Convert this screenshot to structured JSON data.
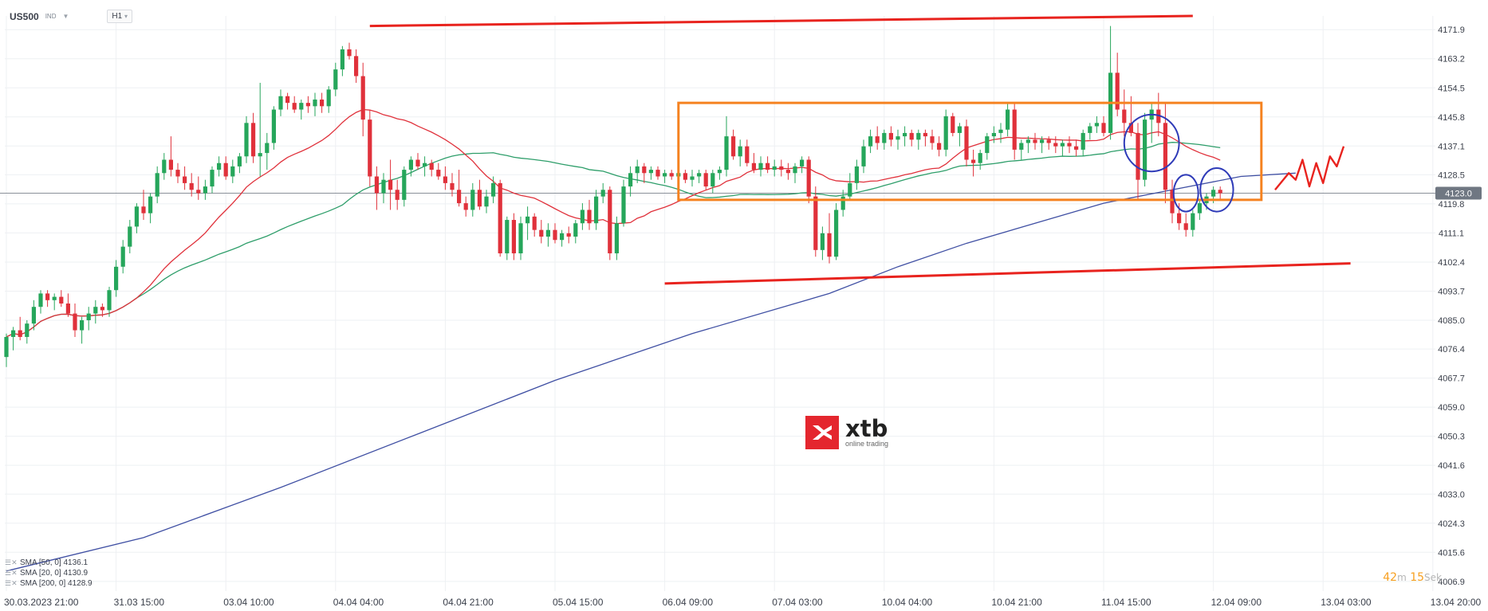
{
  "header": {
    "symbol": "US500",
    "market": "IND",
    "timeframe": "H1"
  },
  "price_axis": {
    "ticks": [
      "4171.9",
      "4163.2",
      "4154.5",
      "4145.8",
      "4137.1",
      "4128.5",
      "4119.8",
      "4111.1",
      "4102.4",
      "4093.7",
      "4085.0",
      "4076.4",
      "4067.7",
      "4059.0",
      "4050.3",
      "4041.6",
      "4033.0",
      "4024.3",
      "4015.6",
      "4006.9"
    ],
    "current_label": "4123.0"
  },
  "time_axis": {
    "labels": [
      "30.03.2023  21:00",
      "31.03  15:00",
      "03.04  10:00",
      "04.04  04:00",
      "04.04  21:00",
      "05.04  15:00",
      "06.04  09:00",
      "07.04  03:00",
      "10.04  04:00",
      "10.04  21:00",
      "11.04  15:00",
      "12.04  09:00",
      "13.04  03:00",
      "13.04  20:00"
    ]
  },
  "legend": [
    {
      "label": "SMA [50, 0] 4136.1"
    },
    {
      "label": "SMA [20, 0] 4130.9"
    },
    {
      "label": "SMA [200, 0] 4128.9"
    }
  ],
  "timer": {
    "minutes": "42",
    "min_unit": "m",
    "seconds": "15",
    "sec_unit": "Sek"
  },
  "logo": {
    "word": "xtb",
    "tagline": "online trading"
  },
  "colors": {
    "up": "#26a65b",
    "down": "#e0313b",
    "sma20": "#e0313b",
    "sma50": "#2e9e6a",
    "sma200": "#3f4fa3",
    "trend": "#e8231e",
    "box": "#f58220",
    "circle": "#2f3bb8",
    "grid": "#eef0f3"
  },
  "chart_data": {
    "type": "candlestick",
    "instrument": "US500",
    "timeframe": "H1",
    "ylim": [
      4004,
      4176
    ],
    "x_index_range": [
      0,
      190
    ],
    "candles": [
      [
        4074,
        4081,
        4071,
        4080
      ],
      [
        4080,
        4083,
        4076,
        4082
      ],
      [
        4082,
        4086,
        4079,
        4080
      ],
      [
        4080,
        4085,
        4078,
        4084
      ],
      [
        4084,
        4091,
        4082,
        4089
      ],
      [
        4089,
        4094,
        4087,
        4093
      ],
      [
        4093,
        4094,
        4089,
        4091
      ],
      [
        4091,
        4093,
        4088,
        4092
      ],
      [
        4092,
        4094,
        4089,
        4090
      ],
      [
        4090,
        4093,
        4086,
        4087
      ],
      [
        4087,
        4090,
        4080,
        4082
      ],
      [
        4082,
        4086,
        4078,
        4085
      ],
      [
        4085,
        4089,
        4082,
        4087
      ],
      [
        4087,
        4091,
        4084,
        4089
      ],
      [
        4089,
        4090,
        4086,
        4088
      ],
      [
        4088,
        4095,
        4086,
        4094
      ],
      [
        4094,
        4103,
        4092,
        4101
      ],
      [
        4101,
        4109,
        4099,
        4107
      ],
      [
        4107,
        4115,
        4105,
        4113
      ],
      [
        4113,
        4120,
        4111,
        4119
      ],
      [
        4119,
        4124,
        4115,
        4117
      ],
      [
        4117,
        4123,
        4114,
        4122
      ],
      [
        4122,
        4131,
        4120,
        4129
      ],
      [
        4129,
        4135,
        4127,
        4133
      ],
      [
        4133,
        4140,
        4128,
        4130
      ],
      [
        4130,
        4132,
        4126,
        4128
      ],
      [
        4128,
        4131,
        4124,
        4126
      ],
      [
        4126,
        4129,
        4122,
        4124
      ],
      [
        4124,
        4128,
        4121,
        4123
      ],
      [
        4123,
        4127,
        4121,
        4125
      ],
      [
        4125,
        4131,
        4123,
        4130
      ],
      [
        4130,
        4134,
        4128,
        4132
      ],
      [
        4132,
        4134,
        4127,
        4128
      ],
      [
        4128,
        4133,
        4126,
        4131
      ],
      [
        4131,
        4135,
        4129,
        4134
      ],
      [
        4134,
        4146,
        4132,
        4144
      ],
      [
        4144,
        4147,
        4132,
        4134
      ],
      [
        4134,
        4156,
        4128,
        4135
      ],
      [
        4135,
        4141,
        4130,
        4138
      ],
      [
        4138,
        4149,
        4136,
        4148
      ],
      [
        4148,
        4154,
        4146,
        4152
      ],
      [
        4152,
        4153,
        4148,
        4150
      ],
      [
        4150,
        4152,
        4147,
        4148
      ],
      [
        4148,
        4151,
        4145,
        4150
      ],
      [
        4150,
        4152,
        4147,
        4149
      ],
      [
        4149,
        4153,
        4146,
        4151
      ],
      [
        4151,
        4153,
        4147,
        4149
      ],
      [
        4149,
        4155,
        4147,
        4154
      ],
      [
        4154,
        4162,
        4152,
        4160
      ],
      [
        4160,
        4167,
        4158,
        4166
      ],
      [
        4166,
        4168,
        4163,
        4164
      ],
      [
        4164,
        4166,
        4156,
        4158
      ],
      [
        4158,
        4162,
        4140,
        4145
      ],
      [
        4145,
        4148,
        4125,
        4128
      ],
      [
        4128,
        4131,
        4118,
        4123
      ],
      [
        4123,
        4129,
        4120,
        4127
      ],
      [
        4127,
        4133,
        4118,
        4124
      ],
      [
        4124,
        4127,
        4118,
        4121
      ],
      [
        4121,
        4131,
        4119,
        4130
      ],
      [
        4130,
        4134,
        4128,
        4133
      ],
      [
        4133,
        4135,
        4130,
        4131
      ],
      [
        4131,
        4134,
        4128,
        4132
      ],
      [
        4132,
        4133,
        4128,
        4130
      ],
      [
        4130,
        4132,
        4127,
        4128
      ],
      [
        4128,
        4131,
        4124,
        4126
      ],
      [
        4126,
        4129,
        4122,
        4124
      ],
      [
        4124,
        4130,
        4119,
        4120
      ],
      [
        4120,
        4122,
        4116,
        4118
      ],
      [
        4118,
        4126,
        4116,
        4124
      ],
      [
        4124,
        4127,
        4118,
        4119
      ],
      [
        4119,
        4124,
        4117,
        4122
      ],
      [
        4122,
        4128,
        4120,
        4126
      ],
      [
        4126,
        4127,
        4104,
        4105
      ],
      [
        4105,
        4116,
        4103,
        4115
      ],
      [
        4115,
        4117,
        4103,
        4105
      ],
      [
        4105,
        4116,
        4103,
        4114
      ],
      [
        4114,
        4119,
        4109,
        4116
      ],
      [
        4116,
        4117,
        4110,
        4112
      ],
      [
        4112,
        4115,
        4108,
        4110
      ],
      [
        4110,
        4114,
        4107,
        4112
      ],
      [
        4112,
        4114,
        4108,
        4109
      ],
      [
        4109,
        4112,
        4107,
        4111
      ],
      [
        4111,
        4113,
        4108,
        4110
      ],
      [
        4110,
        4115,
        4108,
        4114
      ],
      [
        4114,
        4120,
        4112,
        4118
      ],
      [
        4118,
        4121,
        4112,
        4114
      ],
      [
        4114,
        4124,
        4112,
        4122
      ],
      [
        4122,
        4126,
        4120,
        4124
      ],
      [
        4124,
        4125,
        4103,
        4105
      ],
      [
        4105,
        4116,
        4103,
        4114
      ],
      [
        4114,
        4127,
        4113,
        4125
      ],
      [
        4125,
        4131,
        4122,
        4129
      ],
      [
        4129,
        4133,
        4126,
        4131
      ],
      [
        4131,
        4132,
        4126,
        4129
      ],
      [
        4129,
        4131,
        4127,
        4130
      ],
      [
        4130,
        4131,
        4127,
        4128
      ],
      [
        4128,
        4130,
        4126,
        4129
      ],
      [
        4129,
        4130,
        4127,
        4128
      ],
      [
        4128,
        4130,
        4126,
        4129
      ],
      [
        4129,
        4130,
        4126,
        4127
      ],
      [
        4127,
        4130,
        4125,
        4128
      ],
      [
        4128,
        4130,
        4126,
        4129
      ],
      [
        4129,
        4130,
        4124,
        4125
      ],
      [
        4125,
        4130,
        4123,
        4129
      ],
      [
        4129,
        4131,
        4127,
        4130
      ],
      [
        4130,
        4146,
        4128,
        4140
      ],
      [
        4140,
        4142,
        4133,
        4134
      ],
      [
        4134,
        4139,
        4131,
        4137
      ],
      [
        4137,
        4139,
        4131,
        4132
      ],
      [
        4132,
        4135,
        4129,
        4130
      ],
      [
        4130,
        4134,
        4128,
        4132
      ],
      [
        4132,
        4134,
        4129,
        4130
      ],
      [
        4130,
        4133,
        4128,
        4131
      ],
      [
        4131,
        4133,
        4128,
        4130
      ],
      [
        4130,
        4132,
        4127,
        4129
      ],
      [
        4129,
        4132,
        4126,
        4131
      ],
      [
        4131,
        4134,
        4129,
        4133
      ],
      [
        4133,
        4134,
        4120,
        4122
      ],
      [
        4122,
        4125,
        4104,
        4106
      ],
      [
        4106,
        4113,
        4103,
        4111
      ],
      [
        4111,
        4117,
        4102,
        4104
      ],
      [
        4104,
        4120,
        4103,
        4118
      ],
      [
        4118,
        4124,
        4116,
        4122
      ],
      [
        4122,
        4129,
        4121,
        4126
      ],
      [
        4126,
        4133,
        4124,
        4131
      ],
      [
        4131,
        4139,
        4129,
        4137
      ],
      [
        4137,
        4142,
        4135,
        4140
      ],
      [
        4140,
        4143,
        4136,
        4138
      ],
      [
        4138,
        4142,
        4136,
        4141
      ],
      [
        4141,
        4143,
        4137,
        4139
      ],
      [
        4139,
        4142,
        4136,
        4140
      ],
      [
        4140,
        4143,
        4137,
        4141
      ],
      [
        4141,
        4142,
        4137,
        4139
      ],
      [
        4139,
        4142,
        4136,
        4141
      ],
      [
        4141,
        4142,
        4137,
        4140
      ],
      [
        4140,
        4142,
        4136,
        4138
      ],
      [
        4138,
        4140,
        4134,
        4136
      ],
      [
        4136,
        4148,
        4134,
        4146
      ],
      [
        4146,
        4147,
        4140,
        4141
      ],
      [
        4141,
        4144,
        4137,
        4143
      ],
      [
        4143,
        4145,
        4131,
        4133
      ],
      [
        4133,
        4136,
        4128,
        4132
      ],
      [
        4132,
        4136,
        4130,
        4135
      ],
      [
        4135,
        4141,
        4133,
        4140
      ],
      [
        4140,
        4143,
        4138,
        4141
      ],
      [
        4141,
        4144,
        4138,
        4142
      ],
      [
        4142,
        4150,
        4140,
        4148
      ],
      [
        4148,
        4150,
        4133,
        4136
      ],
      [
        4136,
        4139,
        4133,
        4138
      ],
      [
        4138,
        4140,
        4135,
        4139
      ],
      [
        4139,
        4141,
        4136,
        4138
      ],
      [
        4138,
        4140,
        4135,
        4139
      ],
      [
        4139,
        4140,
        4136,
        4138
      ],
      [
        4138,
        4140,
        4135,
        4137
      ],
      [
        4137,
        4139,
        4134,
        4138
      ],
      [
        4138,
        4140,
        4135,
        4137
      ],
      [
        4137,
        4139,
        4134,
        4136
      ],
      [
        4136,
        4142,
        4134,
        4141
      ],
      [
        4141,
        4144,
        4139,
        4143
      ],
      [
        4143,
        4146,
        4141,
        4144
      ],
      [
        4144,
        4146,
        4140,
        4141
      ],
      [
        4141,
        4173,
        4139,
        4159
      ],
      [
        4159,
        4165,
        4146,
        4148
      ],
      [
        4148,
        4154,
        4140,
        4144
      ],
      [
        4144,
        4152,
        4140,
        4141
      ],
      [
        4141,
        4144,
        4121,
        4127
      ],
      [
        4127,
        4147,
        4125,
        4145
      ],
      [
        4145,
        4150,
        4138,
        4148
      ],
      [
        4148,
        4153,
        4140,
        4144
      ],
      [
        4144,
        4150,
        4120,
        4124
      ],
      [
        4124,
        4127,
        4114,
        4117
      ],
      [
        4117,
        4120,
        4112,
        4114
      ],
      [
        4114,
        4117,
        4110,
        4112
      ],
      [
        4112,
        4118,
        4110,
        4117
      ],
      [
        4117,
        4121,
        4115,
        4120
      ],
      [
        4120,
        4123,
        4118,
        4122
      ],
      [
        4122,
        4125,
        4120,
        4124
      ],
      [
        4124,
        4125,
        4121,
        4123
      ]
    ],
    "series": [
      {
        "name": "SMA [50, 0]",
        "kind": "sma",
        "period": 50,
        "last_value": 4136.1
      },
      {
        "name": "SMA [20, 0]",
        "kind": "sma",
        "period": 20,
        "last_value": 4130.9
      },
      {
        "name": "SMA [200, 0]",
        "kind": "sma",
        "period": 200,
        "last_value": 4128.9,
        "points": [
          [
            0,
            4010
          ],
          [
            20,
            4020
          ],
          [
            40,
            4035
          ],
          [
            60,
            4051
          ],
          [
            80,
            4067
          ],
          [
            100,
            4081
          ],
          [
            120,
            4093
          ],
          [
            130,
            4101
          ],
          [
            140,
            4108
          ],
          [
            150,
            4114
          ],
          [
            160,
            4120
          ],
          [
            170,
            4124
          ],
          [
            180,
            4128
          ],
          [
            188,
            4129
          ]
        ]
      }
    ],
    "trend_lines": [
      {
        "from": [
          53,
          4173
        ],
        "to": [
          173,
          4176
        ]
      },
      {
        "from": [
          96,
          4096
        ],
        "to": [
          196,
          4102
        ]
      }
    ],
    "range_box": {
      "x": [
        98,
        183
      ],
      "y": [
        4121,
        4150
      ]
    },
    "circles": [
      {
        "cx": 167,
        "cy": 4138,
        "rx": 4.0,
        "ry": 8.5
      },
      {
        "cx": 172,
        "cy": 4123,
        "rx": 1.8,
        "ry": 5.5
      },
      {
        "cx": 176.5,
        "cy": 4124,
        "rx": 2.4,
        "ry": 6.5
      }
    ],
    "projection": [
      [
        185,
        4124
      ],
      [
        187,
        4129
      ],
      [
        188,
        4127
      ],
      [
        189,
        4133
      ],
      [
        190,
        4125
      ],
      [
        191,
        4132
      ],
      [
        192,
        4126
      ],
      [
        193,
        4134
      ],
      [
        194,
        4131
      ],
      [
        195,
        4137
      ]
    ],
    "current_price": 4123.0
  }
}
